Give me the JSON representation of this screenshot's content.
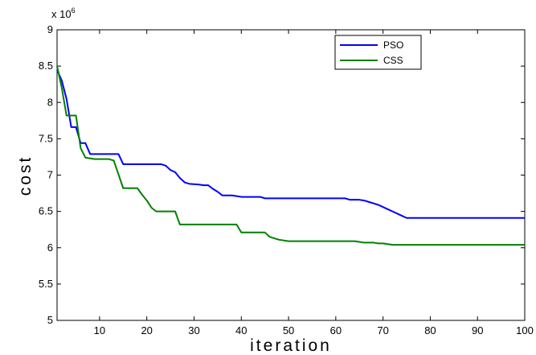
{
  "chart_data": {
    "type": "line",
    "title": "",
    "xlabel": "iteration",
    "ylabel": "cost",
    "y_exponent_label": "x 10",
    "y_exponent_power": "6",
    "xlim": [
      1,
      100
    ],
    "ylim": [
      5,
      9
    ],
    "xticks": [
      10,
      20,
      30,
      40,
      50,
      60,
      70,
      80,
      90,
      100
    ],
    "yticks": [
      5,
      5.5,
      6,
      6.5,
      7,
      7.5,
      8,
      8.5,
      9
    ],
    "ytick_labels": [
      "5",
      "5.5",
      "6",
      "6.5",
      "7",
      "7.5",
      "8",
      "8.5",
      "9"
    ],
    "grid": false,
    "legend_position": "top-right",
    "series": [
      {
        "name": "PSO",
        "color": "#0000ff",
        "x": [
          1,
          2,
          3,
          4,
          5,
          6,
          7,
          8,
          14,
          15,
          23,
          24,
          25,
          26,
          27,
          28,
          29,
          31,
          32,
          33,
          34,
          35,
          36,
          38,
          39,
          40,
          43,
          44,
          45,
          62,
          63,
          65,
          66,
          67,
          68,
          69,
          70,
          71,
          72,
          73,
          74,
          75,
          100
        ],
        "y": [
          8.45,
          8.3,
          8.05,
          7.66,
          7.66,
          7.44,
          7.44,
          7.29,
          7.29,
          7.15,
          7.15,
          7.13,
          7.07,
          7.04,
          6.96,
          6.9,
          6.88,
          6.87,
          6.86,
          6.86,
          6.81,
          6.77,
          6.72,
          6.72,
          6.71,
          6.7,
          6.7,
          6.7,
          6.68,
          6.68,
          6.66,
          6.66,
          6.65,
          6.63,
          6.61,
          6.59,
          6.56,
          6.53,
          6.5,
          6.47,
          6.44,
          6.41,
          6.41
        ]
      },
      {
        "name": "CSS",
        "color": "#008000",
        "x": [
          1,
          2,
          3,
          5,
          6,
          7,
          8,
          9,
          12,
          13,
          14,
          15,
          18,
          19,
          20,
          21,
          22,
          26,
          27,
          39,
          40,
          45,
          46,
          47,
          48,
          50,
          64,
          65,
          66,
          68,
          69,
          70,
          71,
          72,
          100
        ],
        "y": [
          8.5,
          8.2,
          7.82,
          7.82,
          7.37,
          7.24,
          7.23,
          7.22,
          7.22,
          7.2,
          7.01,
          6.82,
          6.82,
          6.73,
          6.65,
          6.55,
          6.5,
          6.5,
          6.32,
          6.32,
          6.21,
          6.21,
          6.15,
          6.13,
          6.11,
          6.09,
          6.09,
          6.08,
          6.07,
          6.07,
          6.06,
          6.06,
          6.05,
          6.04,
          6.04
        ]
      }
    ]
  }
}
